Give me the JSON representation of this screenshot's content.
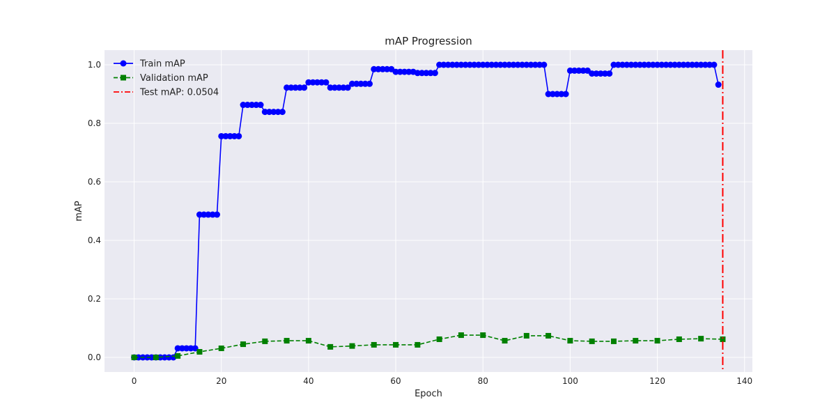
{
  "chart_data": {
    "type": "line",
    "title": "mAP Progression",
    "xlabel": "Epoch",
    "ylabel": "mAP",
    "xlim": [
      -6.8,
      141.8
    ],
    "ylim": [
      -0.05,
      1.05
    ],
    "xticks": [
      0,
      20,
      40,
      60,
      80,
      100,
      120,
      140
    ],
    "yticks": [
      0.0,
      0.2,
      0.4,
      0.6,
      0.8,
      1.0
    ],
    "grid": true,
    "legend_position": "top-left",
    "series": [
      {
        "name": "Train mAP",
        "color": "#0000ff",
        "marker": "circle",
        "linestyle": "solid",
        "x": [
          0,
          1,
          2,
          3,
          4,
          5,
          6,
          7,
          8,
          9,
          10,
          11,
          12,
          13,
          14,
          15,
          16,
          17,
          18,
          19,
          20,
          21,
          22,
          23,
          24,
          25,
          26,
          27,
          28,
          29,
          30,
          31,
          32,
          33,
          34,
          35,
          36,
          37,
          38,
          39,
          40,
          41,
          42,
          43,
          44,
          45,
          46,
          47,
          48,
          49,
          50,
          51,
          52,
          53,
          54,
          55,
          56,
          57,
          58,
          59,
          60,
          61,
          62,
          63,
          64,
          65,
          66,
          67,
          68,
          69,
          70,
          71,
          72,
          73,
          74,
          75,
          76,
          77,
          78,
          79,
          80,
          81,
          82,
          83,
          84,
          85,
          86,
          87,
          88,
          89,
          90,
          91,
          92,
          93,
          94,
          95,
          96,
          97,
          98,
          99,
          100,
          101,
          102,
          103,
          104,
          105,
          106,
          107,
          108,
          109,
          110,
          111,
          112,
          113,
          114,
          115,
          116,
          117,
          118,
          119,
          120,
          121,
          122,
          123,
          124,
          125,
          126,
          127,
          128,
          129,
          130,
          131,
          132,
          133,
          134
        ],
        "values": [
          0.0,
          0.0,
          0.0,
          0.0,
          0.0,
          0.0,
          0.0,
          0.0,
          0.0,
          0.0,
          0.031,
          0.031,
          0.031,
          0.031,
          0.031,
          0.488,
          0.488,
          0.488,
          0.488,
          0.488,
          0.756,
          0.756,
          0.756,
          0.756,
          0.756,
          0.863,
          0.863,
          0.863,
          0.863,
          0.863,
          0.839,
          0.839,
          0.839,
          0.839,
          0.839,
          0.922,
          0.922,
          0.922,
          0.922,
          0.922,
          0.94,
          0.94,
          0.94,
          0.94,
          0.94,
          0.922,
          0.922,
          0.922,
          0.922,
          0.922,
          0.935,
          0.935,
          0.935,
          0.935,
          0.935,
          0.985,
          0.985,
          0.985,
          0.985,
          0.985,
          0.976,
          0.976,
          0.976,
          0.976,
          0.976,
          0.972,
          0.972,
          0.972,
          0.972,
          0.972,
          1.0,
          1.0,
          1.0,
          1.0,
          1.0,
          1.0,
          1.0,
          1.0,
          1.0,
          1.0,
          1.0,
          1.0,
          1.0,
          1.0,
          1.0,
          1.0,
          1.0,
          1.0,
          1.0,
          1.0,
          1.0,
          1.0,
          1.0,
          1.0,
          1.0,
          0.9,
          0.9,
          0.9,
          0.9,
          0.9,
          0.98,
          0.98,
          0.98,
          0.98,
          0.98,
          0.97,
          0.97,
          0.97,
          0.97,
          0.97,
          1.0,
          1.0,
          1.0,
          1.0,
          1.0,
          1.0,
          1.0,
          1.0,
          1.0,
          1.0,
          1.0,
          1.0,
          1.0,
          1.0,
          1.0,
          1.0,
          1.0,
          1.0,
          1.0,
          1.0,
          1.0,
          1.0,
          1.0,
          1.0,
          0.932
        ]
      },
      {
        "name": "Validation mAP",
        "color": "#008000",
        "marker": "square",
        "linestyle": "dashed",
        "x": [
          0,
          5,
          10,
          15,
          20,
          25,
          30,
          35,
          40,
          45,
          50,
          55,
          60,
          65,
          70,
          75,
          80,
          85,
          90,
          95,
          100,
          105,
          110,
          115,
          120,
          125,
          130,
          135
        ],
        "values": [
          0.0,
          0.0,
          0.005,
          0.019,
          0.031,
          0.045,
          0.055,
          0.057,
          0.057,
          0.036,
          0.039,
          0.043,
          0.043,
          0.043,
          0.062,
          0.076,
          0.076,
          0.057,
          0.074,
          0.074,
          0.057,
          0.055,
          0.055,
          0.057,
          0.057,
          0.062,
          0.064,
          0.062
        ]
      },
      {
        "name": "Test mAP: 0.0504",
        "color": "#ff0000",
        "linestyle": "dashdot",
        "type": "vline",
        "x": 135
      }
    ]
  }
}
